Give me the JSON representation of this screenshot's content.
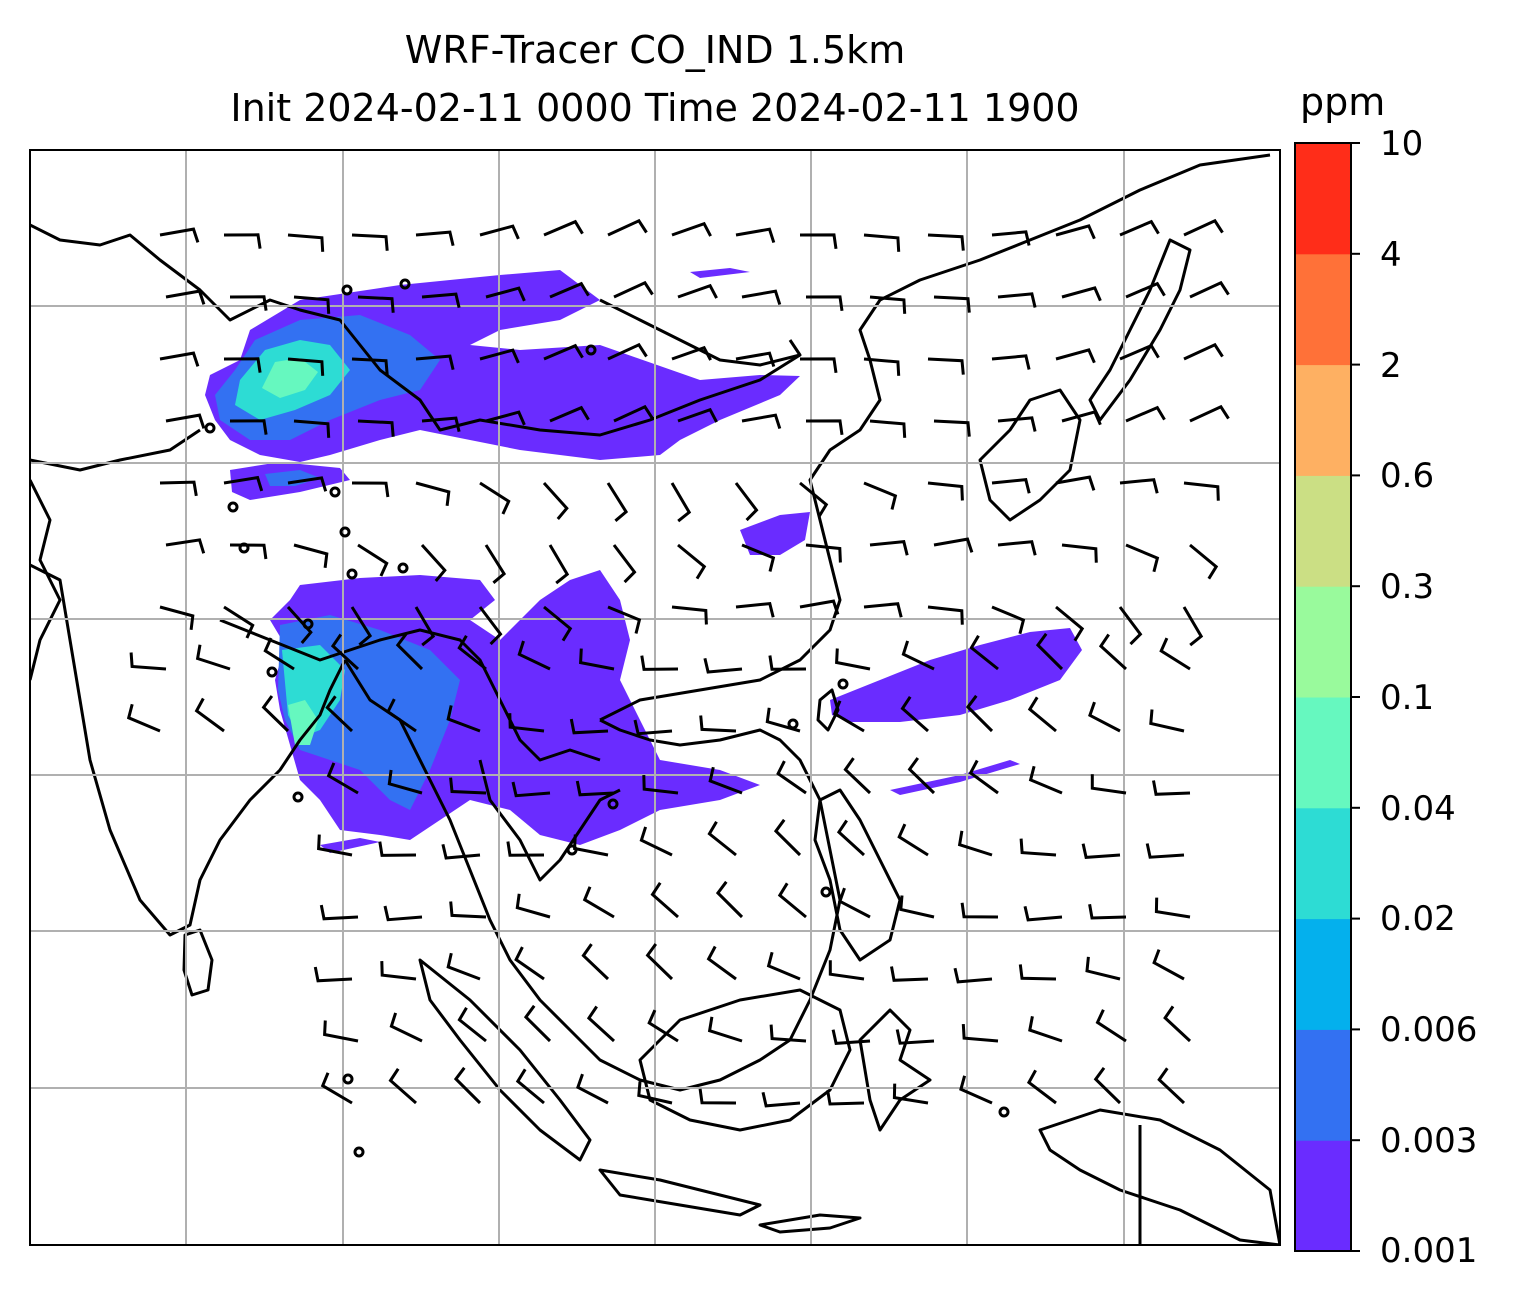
{
  "title": {
    "line1": "WRF-Tracer CO_IND 1.5km",
    "line2": "Init 2024-02-11 0000 Time 2024-02-11 1900"
  },
  "colorbar": {
    "label": "ppm",
    "ticks": [
      "0.001",
      "0.003",
      "0.006",
      "0.02",
      "0.04",
      "0.1",
      "0.3",
      "0.6",
      "2",
      "4",
      "10"
    ],
    "colors": [
      "#6a2cff",
      "#3371f2",
      "#04b0ed",
      "#2ddcd4",
      "#66f8bf",
      "#99fa9c",
      "#cbdf84",
      "#feb062",
      "#ff7138",
      "#ff2d19"
    ]
  },
  "map": {
    "gridlines": true,
    "wind_barbs": true
  }
}
